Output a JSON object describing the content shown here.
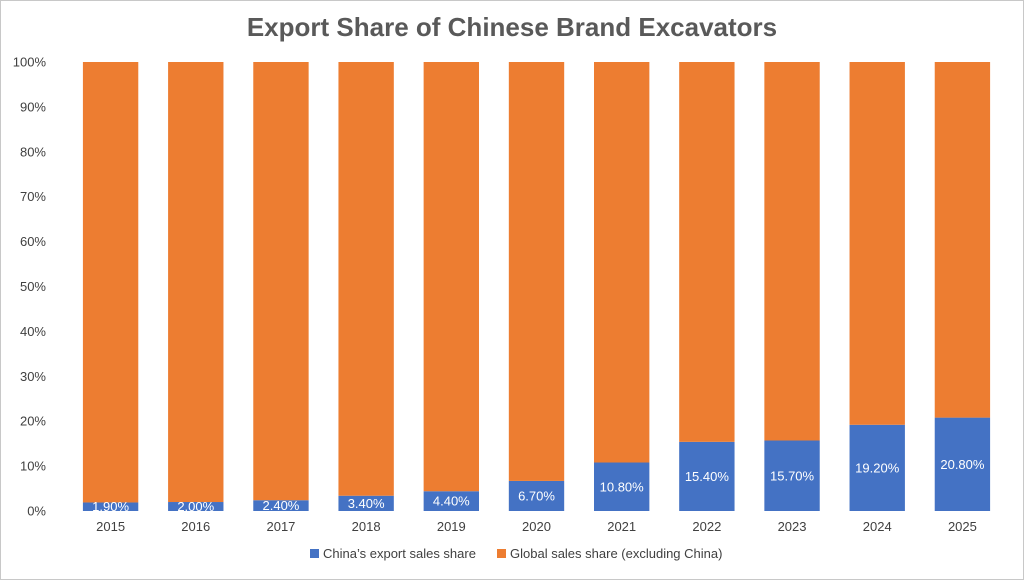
{
  "chart_data": {
    "type": "bar",
    "stacked": true,
    "title": "Export Share of Chinese Brand Excavators",
    "xlabel": "",
    "ylabel": "",
    "ylim": [
      0,
      100
    ],
    "y_ticks": [
      "0%",
      "10%",
      "20%",
      "30%",
      "40%",
      "50%",
      "60%",
      "70%",
      "80%",
      "90%",
      "100%"
    ],
    "grid": false,
    "legend_position": "bottom",
    "categories": [
      "2015",
      "2016",
      "2017",
      "2018",
      "2019",
      "2020",
      "2021",
      "2022",
      "2023",
      "2024",
      "2025"
    ],
    "series": [
      {
        "name": "China’s export sales share",
        "color": "#4472C4",
        "values": [
          1.9,
          2.0,
          2.4,
          3.4,
          4.4,
          6.7,
          10.8,
          15.4,
          15.7,
          19.2,
          20.8
        ],
        "labels": [
          "1.90%",
          "2.00%",
          "2.40%",
          "3.40%",
          "4.40%",
          "6.70%",
          "10.80%",
          "15.40%",
          "15.70%",
          "19.20%",
          "20.80%"
        ]
      },
      {
        "name": "Global sales share (excluding China)",
        "color": "#ED7D31",
        "values": [
          98.1,
          98.0,
          97.6,
          96.6,
          95.6,
          93.3,
          89.2,
          84.6,
          84.3,
          80.8,
          79.2
        ]
      }
    ]
  }
}
